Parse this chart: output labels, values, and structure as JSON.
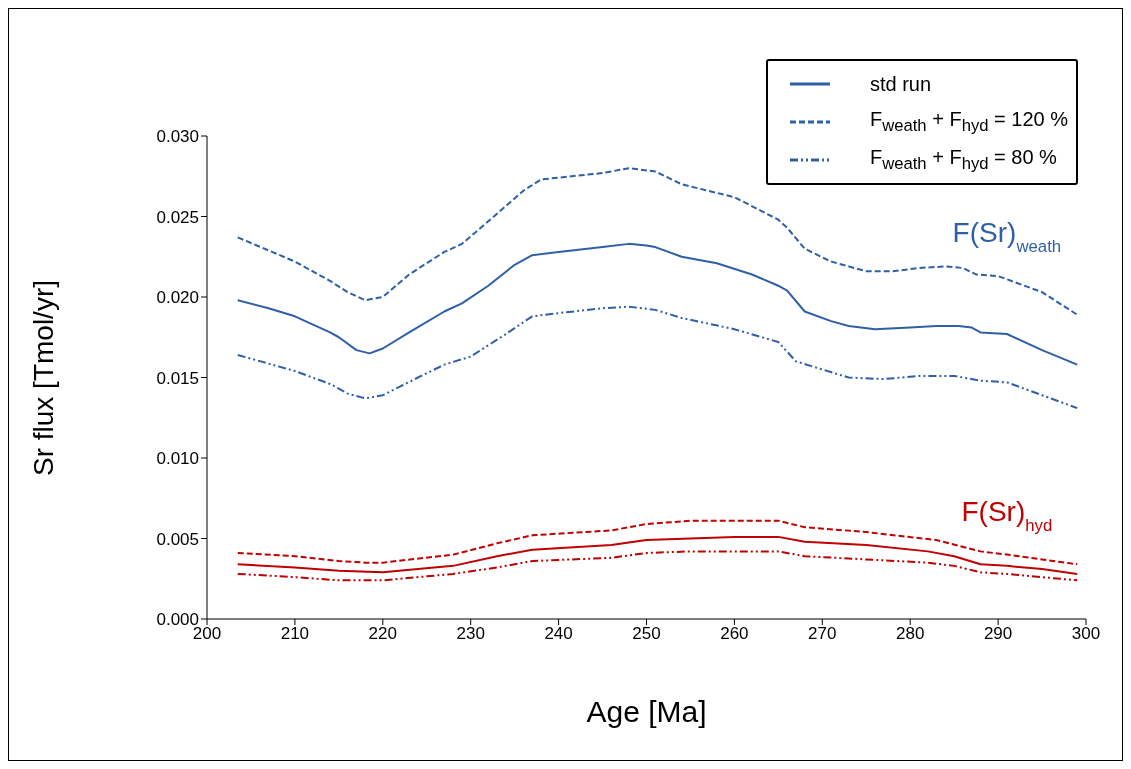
{
  "chart_data": {
    "type": "line",
    "xlabel": "Age [Ma]",
    "ylabel": "Sr flux [Tmol/yr]",
    "xlim": [
      200,
      300
    ],
    "xticks": [
      200,
      210,
      220,
      230,
      240,
      250,
      260,
      270,
      280,
      290,
      300
    ],
    "ylim": [
      0,
      0.03
    ],
    "yticks": [
      {
        "value": 0,
        "label": "0.000"
      },
      {
        "value": 0.005,
        "label": "0.005"
      },
      {
        "value": 0.01,
        "label": "0.010"
      },
      {
        "value": 0.015,
        "label": "0.015"
      },
      {
        "value": 0.02,
        "label": "0.020"
      },
      {
        "value": 0.025,
        "label": "0.025"
      },
      {
        "value": 0.03,
        "label": "0.030"
      }
    ],
    "grid": false,
    "legend": "top right",
    "marker": "none",
    "series": [
      {
        "name": "std run",
        "color": "#2e5fa8",
        "line_style": "solid",
        "x": [
          203.5,
          207,
          210,
          214,
          215,
          217,
          218.5,
          220,
          223,
          227,
          229,
          232,
          235,
          237,
          240,
          245,
          248,
          250,
          251,
          254,
          258,
          262,
          265,
          266,
          268,
          271,
          273,
          276,
          280,
          283,
          285.5,
          287,
          288,
          291,
          295,
          299
        ],
        "values": [
          0.0198,
          0.0193,
          0.0188,
          0.0178,
          0.0175,
          0.0167,
          0.0165,
          0.0168,
          0.0178,
          0.0191,
          0.0196,
          0.0207,
          0.022,
          0.0226,
          0.0228,
          0.0231,
          0.0233,
          0.0232,
          0.0231,
          0.0225,
          0.0221,
          0.0214,
          0.0207,
          0.0204,
          0.0191,
          0.0185,
          0.0182,
          0.018,
          0.0181,
          0.0182,
          0.0182,
          0.0181,
          0.0178,
          0.0177,
          0.0167,
          0.0158
        ]
      },
      {
        "name": "F$_{weath}$ + F$_{hyd}$ = 120 %",
        "color": "#2e5fa8",
        "line_style": "dashed",
        "x": [
          203.5,
          210,
          214,
          216,
          218,
          220,
          223,
          227,
          229,
          232,
          236,
          238,
          245,
          248,
          251,
          254,
          260,
          265,
          266,
          268,
          271,
          275,
          278,
          281,
          284,
          286,
          287.5,
          290,
          295,
          299
        ],
        "values": [
          0.0237,
          0.0222,
          0.021,
          0.0203,
          0.0198,
          0.02,
          0.0214,
          0.0228,
          0.0233,
          0.0247,
          0.0266,
          0.0273,
          0.0277,
          0.028,
          0.0278,
          0.027,
          0.0262,
          0.0248,
          0.0243,
          0.023,
          0.0222,
          0.0216,
          0.0216,
          0.0218,
          0.0219,
          0.0218,
          0.0214,
          0.0213,
          0.0203,
          0.0189
        ]
      },
      {
        "name": "F$_{weath}$ + F$_{hyd}$ = 80 %",
        "color": "#2e5fa8",
        "line_style": "dotted",
        "x": [
          203.5,
          210,
          214,
          216,
          218,
          220,
          224,
          227,
          230,
          234,
          237,
          240,
          245,
          248,
          251,
          254,
          260,
          265,
          267,
          270,
          273,
          277,
          281,
          285,
          288,
          291,
          295,
          299
        ],
        "values": [
          0.0164,
          0.0154,
          0.0146,
          0.014,
          0.0137,
          0.0139,
          0.015,
          0.0158,
          0.0163,
          0.0177,
          0.0188,
          0.019,
          0.0193,
          0.0194,
          0.0192,
          0.0187,
          0.018,
          0.0172,
          0.016,
          0.0155,
          0.015,
          0.0149,
          0.0151,
          0.0151,
          0.0148,
          0.0147,
          0.0139,
          0.0131
        ]
      },
      {
        "color": "#c00000",
        "line_style": "solid",
        "x": [
          203.5,
          210,
          215,
          220,
          228,
          233,
          237,
          246,
          250,
          255,
          260,
          265,
          268,
          275,
          282,
          285,
          288,
          291,
          295,
          299
        ],
        "values": [
          0.0034,
          0.0032,
          0.003,
          0.0029,
          0.0033,
          0.0039,
          0.0043,
          0.0046,
          0.0049,
          0.005,
          0.0051,
          0.0051,
          0.0048,
          0.0046,
          0.0042,
          0.0039,
          0.0034,
          0.0033,
          0.0031,
          0.0028
        ]
      },
      {
        "color": "#c00000",
        "line_style": "dashed",
        "x": [
          203.5,
          210,
          215,
          218,
          220,
          228,
          233,
          237,
          246,
          250,
          255,
          260,
          265,
          268,
          275,
          283,
          288,
          291,
          299
        ],
        "values": [
          0.0041,
          0.0039,
          0.0036,
          0.0035,
          0.0035,
          0.004,
          0.0047,
          0.0052,
          0.0055,
          0.0059,
          0.0061,
          0.0061,
          0.0061,
          0.0057,
          0.0054,
          0.0049,
          0.0042,
          0.004,
          0.0034
        ]
      },
      {
        "color": "#c00000",
        "line_style": "dotted",
        "x": [
          203.5,
          210,
          215,
          220,
          228,
          233,
          237,
          246,
          250,
          255,
          265,
          268,
          275,
          282,
          285,
          288,
          291,
          299
        ],
        "values": [
          0.0028,
          0.0026,
          0.0024,
          0.0024,
          0.0028,
          0.0032,
          0.0036,
          0.0038,
          0.0041,
          0.0042,
          0.0042,
          0.0039,
          0.0037,
          0.0035,
          0.0033,
          0.0029,
          0.0028,
          0.0024
        ]
      }
    ],
    "annotations": [
      "F(Sr)$_{weath}$",
      "F(Sr)$_{hyd}$"
    ]
  }
}
